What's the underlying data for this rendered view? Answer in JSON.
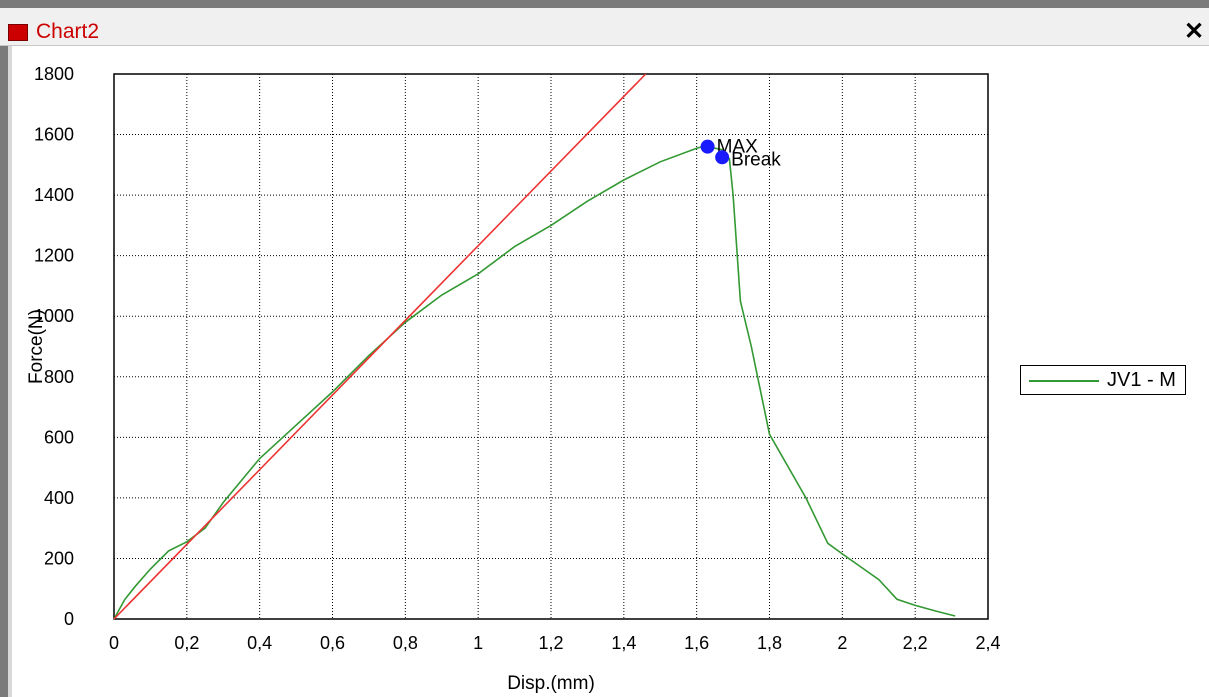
{
  "window": {
    "title": "Chart2",
    "close_icon": "close-icon",
    "close_glyph": "✕"
  },
  "chart_data": {
    "type": "line",
    "xlabel": "Disp.(mm)",
    "ylabel": "Force(N)",
    "xlim": [
      0,
      2.4
    ],
    "ylim": [
      0,
      1800
    ],
    "xticks": [
      "0",
      "0,2",
      "0,4",
      "0,6",
      "0,8",
      "1",
      "1,2",
      "1,4",
      "1,6",
      "1,8",
      "2",
      "2,2",
      "2,4"
    ],
    "yticks": [
      "0",
      "200",
      "400",
      "600",
      "800",
      "1000",
      "1200",
      "1400",
      "1600",
      "1800"
    ],
    "grid": true,
    "legend_position": "right",
    "series": [
      {
        "name": "JV1 - M",
        "color": "#339933",
        "x": [
          0,
          0.03,
          0.06,
          0.1,
          0.15,
          0.2,
          0.25,
          0.3,
          0.4,
          0.5,
          0.6,
          0.7,
          0.8,
          0.9,
          1.0,
          1.1,
          1.2,
          1.3,
          1.4,
          1.5,
          1.6,
          1.63,
          1.65,
          1.67,
          1.68,
          1.69,
          1.7,
          1.72,
          1.75,
          1.8,
          1.9,
          1.96,
          2.0,
          2.1,
          2.15,
          2.2,
          2.26,
          2.31
        ],
        "y": [
          0,
          65,
          110,
          165,
          225,
          255,
          300,
          385,
          530,
          640,
          750,
          870,
          980,
          1070,
          1140,
          1230,
          1300,
          1380,
          1450,
          1510,
          1555,
          1565,
          1555,
          1550,
          1530,
          1520,
          1400,
          1050,
          900,
          610,
          400,
          250,
          215,
          130,
          65,
          45,
          25,
          10
        ]
      },
      {
        "name": "",
        "color": "#ee3333",
        "x": [
          0,
          1.46
        ],
        "y": [
          0,
          1800
        ]
      }
    ],
    "annotations": [
      {
        "label": "MAX",
        "x": 1.63,
        "y": 1560,
        "color": "#1a1aff"
      },
      {
        "label": "Break",
        "x": 1.67,
        "y": 1525,
        "color": "#1a1aff"
      }
    ]
  }
}
